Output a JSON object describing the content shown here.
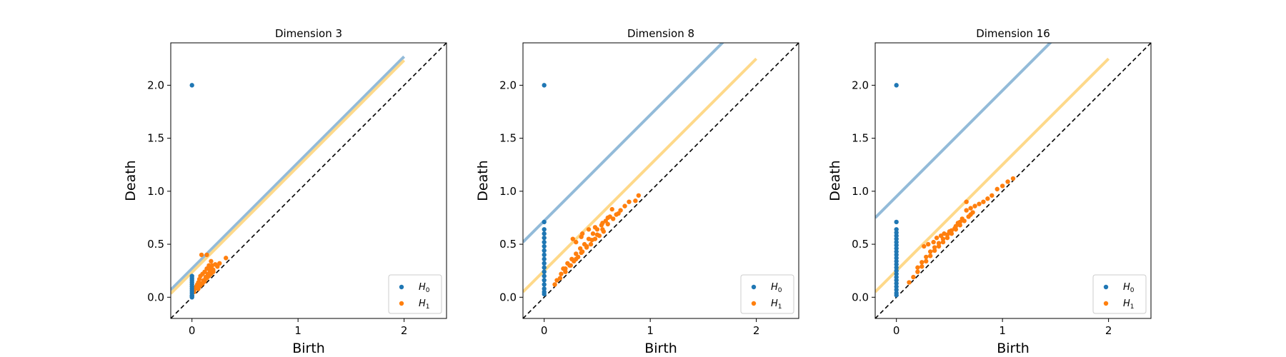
{
  "chart_data": [
    {
      "type": "scatter",
      "title": "Dimension 3",
      "xlabel": "Birth",
      "ylabel": "Death",
      "xlim": [
        -0.2,
        2.4
      ],
      "ylim": [
        -0.2,
        2.4
      ],
      "xticks": [
        "0",
        "1",
        "2"
      ],
      "yticks": [
        "0.0",
        "0.5",
        "1.0",
        "1.5",
        "2.0"
      ],
      "legend": {
        "placement": "lower-right",
        "entries": [
          "H0",
          "H1"
        ]
      },
      "diagonal": {
        "style": "dashed",
        "color": "#000000"
      },
      "bands": [
        {
          "series": "H0",
          "offset": 0.27,
          "x_range": [
            -0.2,
            2.0
          ],
          "color": "#93bbd9"
        },
        {
          "series": "H1",
          "offset": 0.235,
          "x_range": [
            -0.2,
            2.0
          ],
          "color": "#fed98a"
        }
      ],
      "series": [
        {
          "name": "H0",
          "color": "#1f77b4",
          "points": [
            [
              0,
              2.0
            ],
            [
              0,
              0.2
            ],
            [
              0,
              0.18
            ],
            [
              0,
              0.16
            ],
            [
              0,
              0.14
            ],
            [
              0,
              0.12
            ],
            [
              0,
              0.1
            ],
            [
              0,
              0.08
            ],
            [
              0,
              0.06
            ],
            [
              0,
              0.04
            ],
            [
              0,
              0.02
            ],
            [
              0,
              0.01
            ],
            [
              0,
              0.0
            ]
          ]
        },
        {
          "name": "H1",
          "color": "#ff7f0e",
          "points": [
            [
              0.02,
              0.05
            ],
            [
              0.03,
              0.08
            ],
            [
              0.04,
              0.1
            ],
            [
              0.05,
              0.12
            ],
            [
              0.06,
              0.14
            ],
            [
              0.07,
              0.17
            ],
            [
              0.08,
              0.2
            ],
            [
              0.09,
              0.13
            ],
            [
              0.1,
              0.22
            ],
            [
              0.11,
              0.16
            ],
            [
              0.12,
              0.24
            ],
            [
              0.13,
              0.19
            ],
            [
              0.14,
              0.27
            ],
            [
              0.15,
              0.22
            ],
            [
              0.16,
              0.3
            ],
            [
              0.17,
              0.25
            ],
            [
              0.18,
              0.28
            ],
            [
              0.19,
              0.3
            ],
            [
              0.2,
              0.26
            ],
            [
              0.22,
              0.31
            ],
            [
              0.24,
              0.29
            ],
            [
              0.26,
              0.32
            ],
            [
              0.06,
              0.08
            ],
            [
              0.08,
              0.11
            ],
            [
              0.1,
              0.13
            ],
            [
              0.12,
              0.15
            ],
            [
              0.14,
              0.18
            ],
            [
              0.16,
              0.2
            ],
            [
              0.18,
              0.22
            ],
            [
              0.2,
              0.24
            ],
            [
              0.09,
              0.4
            ],
            [
              0.14,
              0.4
            ],
            [
              0.18,
              0.34
            ],
            [
              0.32,
              0.37
            ]
          ]
        }
      ]
    },
    {
      "type": "scatter",
      "title": "Dimension 8",
      "xlabel": "Birth",
      "ylabel": "Death",
      "xlim": [
        -0.2,
        2.4
      ],
      "ylim": [
        -0.2,
        2.4
      ],
      "xticks": [
        "0",
        "1",
        "2"
      ],
      "yticks": [
        "0.0",
        "0.5",
        "1.0",
        "1.5",
        "2.0"
      ],
      "legend": {
        "placement": "lower-right",
        "entries": [
          "H0",
          "H1"
        ]
      },
      "diagonal": {
        "style": "dashed",
        "color": "#000000"
      },
      "bands": [
        {
          "series": "H0",
          "offset": 0.72,
          "x_range": [
            -0.2,
            2.0
          ],
          "color": "#93bbd9"
        },
        {
          "series": "H1",
          "offset": 0.25,
          "x_range": [
            -0.2,
            2.0
          ],
          "color": "#fed98a"
        }
      ],
      "series": [
        {
          "name": "H0",
          "color": "#1f77b4",
          "points": [
            [
              0,
              2.0
            ],
            [
              0,
              0.71
            ],
            [
              0,
              0.64
            ],
            [
              0,
              0.6
            ],
            [
              0,
              0.56
            ],
            [
              0,
              0.52
            ],
            [
              0,
              0.48
            ],
            [
              0,
              0.44
            ],
            [
              0,
              0.4
            ],
            [
              0,
              0.36
            ],
            [
              0,
              0.32
            ],
            [
              0,
              0.28
            ],
            [
              0,
              0.24
            ],
            [
              0,
              0.2
            ],
            [
              0,
              0.16
            ],
            [
              0,
              0.12
            ],
            [
              0,
              0.08
            ],
            [
              0,
              0.05
            ],
            [
              0,
              0.03
            ]
          ]
        },
        {
          "name": "H1",
          "color": "#ff7f0e",
          "points": [
            [
              0.1,
              0.12
            ],
            [
              0.15,
              0.18
            ],
            [
              0.2,
              0.24
            ],
            [
              0.25,
              0.3
            ],
            [
              0.3,
              0.36
            ],
            [
              0.35,
              0.42
            ],
            [
              0.4,
              0.48
            ],
            [
              0.45,
              0.54
            ],
            [
              0.5,
              0.59
            ],
            [
              0.55,
              0.64
            ],
            [
              0.6,
              0.69
            ],
            [
              0.65,
              0.74
            ],
            [
              0.7,
              0.79
            ],
            [
              0.18,
              0.27
            ],
            [
              0.22,
              0.32
            ],
            [
              0.26,
              0.36
            ],
            [
              0.3,
              0.41
            ],
            [
              0.34,
              0.46
            ],
            [
              0.38,
              0.5
            ],
            [
              0.42,
              0.55
            ],
            [
              0.46,
              0.6
            ],
            [
              0.5,
              0.64
            ],
            [
              0.54,
              0.68
            ],
            [
              0.58,
              0.72
            ],
            [
              0.62,
              0.76
            ],
            [
              0.24,
              0.3
            ],
            [
              0.28,
              0.34
            ],
            [
              0.32,
              0.38
            ],
            [
              0.36,
              0.43
            ],
            [
              0.4,
              0.47
            ],
            [
              0.44,
              0.5
            ],
            [
              0.48,
              0.55
            ],
            [
              0.52,
              0.58
            ],
            [
              0.56,
              0.62
            ],
            [
              0.35,
              0.57
            ],
            [
              0.42,
              0.64
            ],
            [
              0.48,
              0.66
            ],
            [
              0.3,
              0.52
            ],
            [
              0.55,
              0.7
            ],
            [
              0.64,
              0.83
            ],
            [
              0.68,
              0.78
            ],
            [
              0.72,
              0.82
            ],
            [
              0.76,
              0.86
            ],
            [
              0.8,
              0.9
            ],
            [
              0.86,
              0.91
            ],
            [
              0.89,
              0.96
            ],
            [
              0.27,
              0.55
            ],
            [
              0.36,
              0.6
            ],
            [
              0.6,
              0.75
            ],
            [
              0.16,
              0.22
            ],
            [
              0.2,
              0.27
            ],
            [
              0.12,
              0.16
            ]
          ]
        }
      ]
    },
    {
      "type": "scatter",
      "title": "Dimension 16",
      "xlabel": "Birth",
      "ylabel": "Death",
      "xlim": [
        -0.2,
        2.4
      ],
      "ylim": [
        -0.2,
        2.4
      ],
      "xticks": [
        "0",
        "1",
        "2"
      ],
      "yticks": [
        "0.0",
        "0.5",
        "1.0",
        "1.5",
        "2.0"
      ],
      "legend": {
        "placement": "lower-right",
        "entries": [
          "H0",
          "H1"
        ]
      },
      "diagonal": {
        "style": "dashed",
        "color": "#000000"
      },
      "bands": [
        {
          "series": "H0",
          "offset": 0.95,
          "x_range": [
            -0.2,
            2.0
          ],
          "color": "#93bbd9"
        },
        {
          "series": "H1",
          "offset": 0.25,
          "x_range": [
            -0.2,
            2.0
          ],
          "color": "#fed98a"
        }
      ],
      "series": [
        {
          "name": "H0",
          "color": "#1f77b4",
          "points": [
            [
              0,
              2.0
            ],
            [
              0,
              0.71
            ],
            [
              0,
              0.64
            ],
            [
              0,
              0.61
            ],
            [
              0,
              0.58
            ],
            [
              0,
              0.55
            ],
            [
              0,
              0.52
            ],
            [
              0,
              0.49
            ],
            [
              0,
              0.46
            ],
            [
              0,
              0.43
            ],
            [
              0,
              0.4
            ],
            [
              0,
              0.37
            ],
            [
              0,
              0.34
            ],
            [
              0,
              0.31
            ],
            [
              0,
              0.28
            ],
            [
              0,
              0.25
            ],
            [
              0,
              0.22
            ],
            [
              0,
              0.19
            ],
            [
              0,
              0.16
            ],
            [
              0,
              0.13
            ],
            [
              0,
              0.1
            ],
            [
              0,
              0.07
            ],
            [
              0,
              0.04
            ],
            [
              0,
              0.02
            ]
          ]
        },
        {
          "name": "H1",
          "color": "#ff7f0e",
          "points": [
            [
              0.12,
              0.14
            ],
            [
              0.16,
              0.19
            ],
            [
              0.2,
              0.24
            ],
            [
              0.24,
              0.29
            ],
            [
              0.28,
              0.34
            ],
            [
              0.32,
              0.39
            ],
            [
              0.36,
              0.44
            ],
            [
              0.4,
              0.48
            ],
            [
              0.44,
              0.52
            ],
            [
              0.48,
              0.56
            ],
            [
              0.52,
              0.6
            ],
            [
              0.56,
              0.64
            ],
            [
              0.6,
              0.68
            ],
            [
              0.64,
              0.72
            ],
            [
              0.68,
              0.76
            ],
            [
              0.72,
              0.8
            ],
            [
              0.2,
              0.28
            ],
            [
              0.24,
              0.33
            ],
            [
              0.28,
              0.38
            ],
            [
              0.32,
              0.43
            ],
            [
              0.36,
              0.47
            ],
            [
              0.4,
              0.51
            ],
            [
              0.44,
              0.55
            ],
            [
              0.48,
              0.59
            ],
            [
              0.52,
              0.63
            ],
            [
              0.56,
              0.67
            ],
            [
              0.6,
              0.71
            ],
            [
              0.3,
              0.5
            ],
            [
              0.35,
              0.52
            ],
            [
              0.42,
              0.58
            ],
            [
              0.5,
              0.62
            ],
            [
              0.55,
              0.65
            ],
            [
              0.62,
              0.74
            ],
            [
              0.66,
              0.82
            ],
            [
              0.7,
              0.84
            ],
            [
              0.66,
              0.9
            ],
            [
              0.74,
              0.86
            ],
            [
              0.78,
              0.88
            ],
            [
              0.82,
              0.9
            ],
            [
              0.86,
              0.93
            ],
            [
              0.9,
              0.96
            ],
            [
              0.95,
              1.02
            ],
            [
              1.0,
              1.05
            ],
            [
              1.05,
              1.09
            ],
            [
              1.1,
              1.12
            ],
            [
              0.26,
              0.48
            ],
            [
              0.38,
              0.56
            ],
            [
              0.45,
              0.6
            ],
            [
              0.58,
              0.7
            ],
            [
              0.7,
              0.78
            ]
          ]
        }
      ]
    }
  ]
}
